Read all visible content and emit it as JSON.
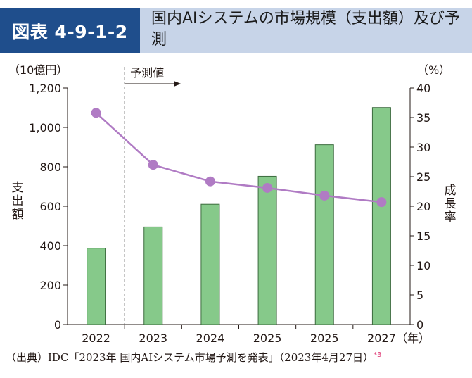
{
  "header": {
    "badge": "図表 4-9-1-2",
    "title": "国内AIシステムの市場規模（支出額）及び予測"
  },
  "axes": {
    "left_unit": "（10億円）",
    "right_unit": "（%）",
    "left_label": "支出額",
    "right_label": "成長率",
    "x_unit": "（年）",
    "forecast_label": "予測値"
  },
  "source": {
    "text": "（出典）IDC「2023年 国内AIシステム市場予測を発表」（2023年4月27日）",
    "note": "*3"
  },
  "colors": {
    "bar_fill": "#86c98a",
    "bar_stroke": "#3c6b3e",
    "line": "#b07bc4",
    "badge": "#1f4e8c",
    "title_bg": "#c7d4e8"
  },
  "chart_data": {
    "type": "bar+line",
    "categories": [
      "2022",
      "2023",
      "2024",
      "2025",
      "2025",
      "2027"
    ],
    "series": [
      {
        "type": "bar",
        "axis": "left",
        "values": [
          387,
          495,
          610,
          752,
          912,
          1101
        ]
      },
      {
        "type": "line",
        "axis": "right",
        "values": [
          35.8,
          27.0,
          24.2,
          23.1,
          21.8,
          20.7
        ]
      }
    ],
    "left_axis": {
      "ylim": [
        0,
        1200
      ],
      "ticks": [
        "0",
        "200",
        "400",
        "600",
        "800",
        "1,000",
        "1,200"
      ]
    },
    "right_axis": {
      "ylim": [
        0,
        40
      ],
      "ticks": [
        "0",
        "5",
        "10",
        "15",
        "20",
        "25",
        "30",
        "35",
        "40"
      ]
    },
    "forecast_start_category": "2023"
  }
}
